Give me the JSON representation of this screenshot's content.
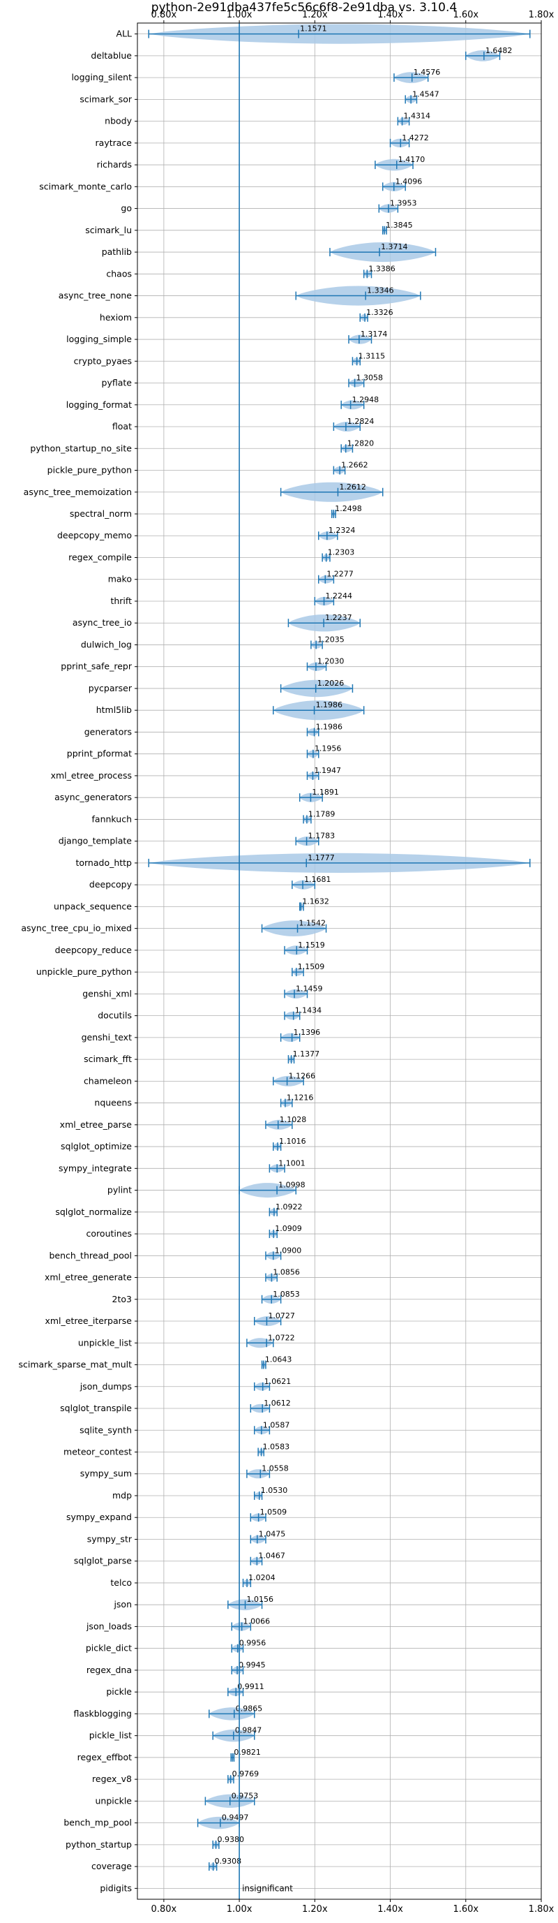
{
  "chart_data": {
    "type": "violin",
    "title": "python-2e91dba437fe5c56c6f8-2e91dba vs. 3.10.4",
    "xlim": [
      0.73,
      1.8
    ],
    "xticks": [
      0.8,
      1.0,
      1.2,
      1.4,
      1.6,
      1.8
    ],
    "xtick_labels": [
      "0.80x",
      "1.00x",
      "1.20x",
      "1.40x",
      "1.60x",
      "1.80x"
    ],
    "grid": true,
    "reference_line": 1.0,
    "colors": {
      "violin": "#a9c9e6",
      "whisker": "#1f77b4",
      "reference": "#1f77b4",
      "grid": "#b0b0b0"
    },
    "benchmarks": [
      {
        "name": "ALL",
        "value": 1.1571,
        "label": "1.1571",
        "lo": 0.76,
        "hi": 1.77
      },
      {
        "name": "deltablue",
        "value": 1.6482,
        "label": "1.6482",
        "lo": 1.6,
        "hi": 1.69
      },
      {
        "name": "logging_silent",
        "value": 1.4576,
        "label": "1.4576",
        "lo": 1.41,
        "hi": 1.5
      },
      {
        "name": "scimark_sor",
        "value": 1.4547,
        "label": "1.4547",
        "lo": 1.44,
        "hi": 1.47
      },
      {
        "name": "nbody",
        "value": 1.4314,
        "label": "1.4314",
        "lo": 1.42,
        "hi": 1.45
      },
      {
        "name": "raytrace",
        "value": 1.4272,
        "label": "1.4272",
        "lo": 1.4,
        "hi": 1.45
      },
      {
        "name": "richards",
        "value": 1.417,
        "label": "1.4170",
        "lo": 1.36,
        "hi": 1.46
      },
      {
        "name": "scimark_monte_carlo",
        "value": 1.4096,
        "label": "1.4096",
        "lo": 1.38,
        "hi": 1.44
      },
      {
        "name": "go",
        "value": 1.3953,
        "label": "1.3953",
        "lo": 1.37,
        "hi": 1.42
      },
      {
        "name": "scimark_lu",
        "value": 1.3845,
        "label": "1.3845",
        "lo": 1.38,
        "hi": 1.39
      },
      {
        "name": "pathlib",
        "value": 1.3714,
        "label": "1.3714",
        "lo": 1.24,
        "hi": 1.52
      },
      {
        "name": "chaos",
        "value": 1.3386,
        "label": "1.3386",
        "lo": 1.33,
        "hi": 1.35
      },
      {
        "name": "async_tree_none",
        "value": 1.3346,
        "label": "1.3346",
        "lo": 1.15,
        "hi": 1.48
      },
      {
        "name": "hexiom",
        "value": 1.3326,
        "label": "1.3326",
        "lo": 1.32,
        "hi": 1.34
      },
      {
        "name": "logging_simple",
        "value": 1.3174,
        "label": "1.3174",
        "lo": 1.29,
        "hi": 1.35
      },
      {
        "name": "crypto_pyaes",
        "value": 1.3115,
        "label": "1.3115",
        "lo": 1.3,
        "hi": 1.32
      },
      {
        "name": "pyflate",
        "value": 1.3058,
        "label": "1.3058",
        "lo": 1.29,
        "hi": 1.33
      },
      {
        "name": "logging_format",
        "value": 1.2948,
        "label": "1.2948",
        "lo": 1.27,
        "hi": 1.33
      },
      {
        "name": "float",
        "value": 1.2824,
        "label": "1.2824",
        "lo": 1.25,
        "hi": 1.32
      },
      {
        "name": "python_startup_no_site",
        "value": 1.282,
        "label": "1.2820",
        "lo": 1.27,
        "hi": 1.3
      },
      {
        "name": "pickle_pure_python",
        "value": 1.2662,
        "label": "1.2662",
        "lo": 1.25,
        "hi": 1.28
      },
      {
        "name": "async_tree_memoization",
        "value": 1.2612,
        "label": "1.2612",
        "lo": 1.11,
        "hi": 1.38
      },
      {
        "name": "spectral_norm",
        "value": 1.2498,
        "label": "1.2498",
        "lo": 1.245,
        "hi": 1.255
      },
      {
        "name": "deepcopy_memo",
        "value": 1.2324,
        "label": "1.2324",
        "lo": 1.21,
        "hi": 1.26
      },
      {
        "name": "regex_compile",
        "value": 1.2303,
        "label": "1.2303",
        "lo": 1.22,
        "hi": 1.24
      },
      {
        "name": "mako",
        "value": 1.2277,
        "label": "1.2277",
        "lo": 1.21,
        "hi": 1.25
      },
      {
        "name": "thrift",
        "value": 1.2244,
        "label": "1.2244",
        "lo": 1.2,
        "hi": 1.25
      },
      {
        "name": "async_tree_io",
        "value": 1.2237,
        "label": "1.2237",
        "lo": 1.13,
        "hi": 1.32
      },
      {
        "name": "dulwich_log",
        "value": 1.2035,
        "label": "1.2035",
        "lo": 1.19,
        "hi": 1.22
      },
      {
        "name": "pprint_safe_repr",
        "value": 1.203,
        "label": "1.2030",
        "lo": 1.18,
        "hi": 1.23
      },
      {
        "name": "pycparser",
        "value": 1.2026,
        "label": "1.2026",
        "lo": 1.11,
        "hi": 1.3
      },
      {
        "name": "html5lib",
        "value": 1.1986,
        "label": "1.1986",
        "lo": 1.09,
        "hi": 1.33
      },
      {
        "name": "generators",
        "value": 1.1986,
        "label": "1.1986",
        "lo": 1.18,
        "hi": 1.21
      },
      {
        "name": "pprint_pformat",
        "value": 1.1956,
        "label": "1.1956",
        "lo": 1.18,
        "hi": 1.21
      },
      {
        "name": "xml_etree_process",
        "value": 1.1947,
        "label": "1.1947",
        "lo": 1.18,
        "hi": 1.21
      },
      {
        "name": "async_generators",
        "value": 1.1891,
        "label": "1.1891",
        "lo": 1.16,
        "hi": 1.22
      },
      {
        "name": "fannkuch",
        "value": 1.1789,
        "label": "1.1789",
        "lo": 1.17,
        "hi": 1.19
      },
      {
        "name": "django_template",
        "value": 1.1783,
        "label": "1.1783",
        "lo": 1.15,
        "hi": 1.21
      },
      {
        "name": "tornado_http",
        "value": 1.1777,
        "label": "1.1777",
        "lo": 0.76,
        "hi": 1.77
      },
      {
        "name": "deepcopy",
        "value": 1.1681,
        "label": "1.1681",
        "lo": 1.14,
        "hi": 1.2
      },
      {
        "name": "unpack_sequence",
        "value": 1.1632,
        "label": "1.1632",
        "lo": 1.16,
        "hi": 1.17
      },
      {
        "name": "async_tree_cpu_io_mixed",
        "value": 1.1542,
        "label": "1.1542",
        "lo": 1.06,
        "hi": 1.23
      },
      {
        "name": "deepcopy_reduce",
        "value": 1.1519,
        "label": "1.1519",
        "lo": 1.12,
        "hi": 1.18
      },
      {
        "name": "unpickle_pure_python",
        "value": 1.1509,
        "label": "1.1509",
        "lo": 1.14,
        "hi": 1.17
      },
      {
        "name": "genshi_xml",
        "value": 1.1459,
        "label": "1.1459",
        "lo": 1.12,
        "hi": 1.18
      },
      {
        "name": "docutils",
        "value": 1.1434,
        "label": "1.1434",
        "lo": 1.12,
        "hi": 1.16
      },
      {
        "name": "genshi_text",
        "value": 1.1396,
        "label": "1.1396",
        "lo": 1.11,
        "hi": 1.16
      },
      {
        "name": "scimark_fft",
        "value": 1.1377,
        "label": "1.1377",
        "lo": 1.13,
        "hi": 1.145
      },
      {
        "name": "chameleon",
        "value": 1.1266,
        "label": "1.1266",
        "lo": 1.09,
        "hi": 1.17
      },
      {
        "name": "nqueens",
        "value": 1.1216,
        "label": "1.1216",
        "lo": 1.11,
        "hi": 1.14
      },
      {
        "name": "xml_etree_parse",
        "value": 1.1028,
        "label": "1.1028",
        "lo": 1.07,
        "hi": 1.14
      },
      {
        "name": "sqlglot_optimize",
        "value": 1.1016,
        "label": "1.1016",
        "lo": 1.09,
        "hi": 1.11
      },
      {
        "name": "sympy_integrate",
        "value": 1.1001,
        "label": "1.1001",
        "lo": 1.08,
        "hi": 1.12
      },
      {
        "name": "pylint",
        "value": 1.0998,
        "label": "1.0998",
        "lo": 1.0,
        "hi": 1.15
      },
      {
        "name": "sqlglot_normalize",
        "value": 1.0922,
        "label": "1.0922",
        "lo": 1.08,
        "hi": 1.1
      },
      {
        "name": "coroutines",
        "value": 1.0909,
        "label": "1.0909",
        "lo": 1.08,
        "hi": 1.1
      },
      {
        "name": "bench_thread_pool",
        "value": 1.09,
        "label": "1.0900",
        "lo": 1.07,
        "hi": 1.11
      },
      {
        "name": "xml_etree_generate",
        "value": 1.0856,
        "label": "1.0856",
        "lo": 1.07,
        "hi": 1.1
      },
      {
        "name": "2to3",
        "value": 1.0853,
        "label": "1.0853",
        "lo": 1.06,
        "hi": 1.11
      },
      {
        "name": "xml_etree_iterparse",
        "value": 1.0727,
        "label": "1.0727",
        "lo": 1.04,
        "hi": 1.11
      },
      {
        "name": "unpickle_list",
        "value": 1.0722,
        "label": "1.0722",
        "lo": 1.02,
        "hi": 1.09
      },
      {
        "name": "scimark_sparse_mat_mult",
        "value": 1.0643,
        "label": "1.0643",
        "lo": 1.06,
        "hi": 1.07
      },
      {
        "name": "json_dumps",
        "value": 1.0621,
        "label": "1.0621",
        "lo": 1.04,
        "hi": 1.08
      },
      {
        "name": "sqlglot_transpile",
        "value": 1.0612,
        "label": "1.0612",
        "lo": 1.03,
        "hi": 1.08
      },
      {
        "name": "sqlite_synth",
        "value": 1.0587,
        "label": "1.0587",
        "lo": 1.04,
        "hi": 1.08
      },
      {
        "name": "meteor_contest",
        "value": 1.0583,
        "label": "1.0583",
        "lo": 1.05,
        "hi": 1.065
      },
      {
        "name": "sympy_sum",
        "value": 1.0558,
        "label": "1.0558",
        "lo": 1.02,
        "hi": 1.08
      },
      {
        "name": "mdp",
        "value": 1.053,
        "label": "1.0530",
        "lo": 1.04,
        "hi": 1.06
      },
      {
        "name": "sympy_expand",
        "value": 1.0509,
        "label": "1.0509",
        "lo": 1.03,
        "hi": 1.07
      },
      {
        "name": "sympy_str",
        "value": 1.0475,
        "label": "1.0475",
        "lo": 1.03,
        "hi": 1.07
      },
      {
        "name": "sqlglot_parse",
        "value": 1.0467,
        "label": "1.0467",
        "lo": 1.03,
        "hi": 1.06
      },
      {
        "name": "telco",
        "value": 1.0204,
        "label": "1.0204",
        "lo": 1.01,
        "hi": 1.03
      },
      {
        "name": "json",
        "value": 1.0156,
        "label": "1.0156",
        "lo": 0.97,
        "hi": 1.06
      },
      {
        "name": "json_loads",
        "value": 1.0066,
        "label": "1.0066",
        "lo": 0.98,
        "hi": 1.03
      },
      {
        "name": "pickle_dict",
        "value": 0.9956,
        "label": "0.9956",
        "lo": 0.98,
        "hi": 1.01
      },
      {
        "name": "regex_dna",
        "value": 0.9945,
        "label": "0.9945",
        "lo": 0.98,
        "hi": 1.01
      },
      {
        "name": "pickle",
        "value": 0.9911,
        "label": "0.9911",
        "lo": 0.97,
        "hi": 1.01
      },
      {
        "name": "flaskblogging",
        "value": 0.9865,
        "label": "0.9865",
        "lo": 0.92,
        "hi": 1.04
      },
      {
        "name": "pickle_list",
        "value": 0.9847,
        "label": "0.9847",
        "lo": 0.93,
        "hi": 1.04
      },
      {
        "name": "regex_effbot",
        "value": 0.9821,
        "label": "0.9821",
        "lo": 0.978,
        "hi": 0.986
      },
      {
        "name": "regex_v8",
        "value": 0.9769,
        "label": "0.9769",
        "lo": 0.97,
        "hi": 0.985
      },
      {
        "name": "unpickle",
        "value": 0.9753,
        "label": "0.9753",
        "lo": 0.91,
        "hi": 1.04
      },
      {
        "name": "bench_mp_pool",
        "value": 0.9497,
        "label": "0.9497",
        "lo": 0.89,
        "hi": 1.0
      },
      {
        "name": "python_startup",
        "value": 0.938,
        "label": "0.9380",
        "lo": 0.93,
        "hi": 0.946
      },
      {
        "name": "coverage",
        "value": 0.9308,
        "label": "0.9308",
        "lo": 0.92,
        "hi": 0.94
      },
      {
        "name": "pidigits",
        "value": null,
        "label": "insignificant",
        "lo": null,
        "hi": null
      }
    ]
  }
}
